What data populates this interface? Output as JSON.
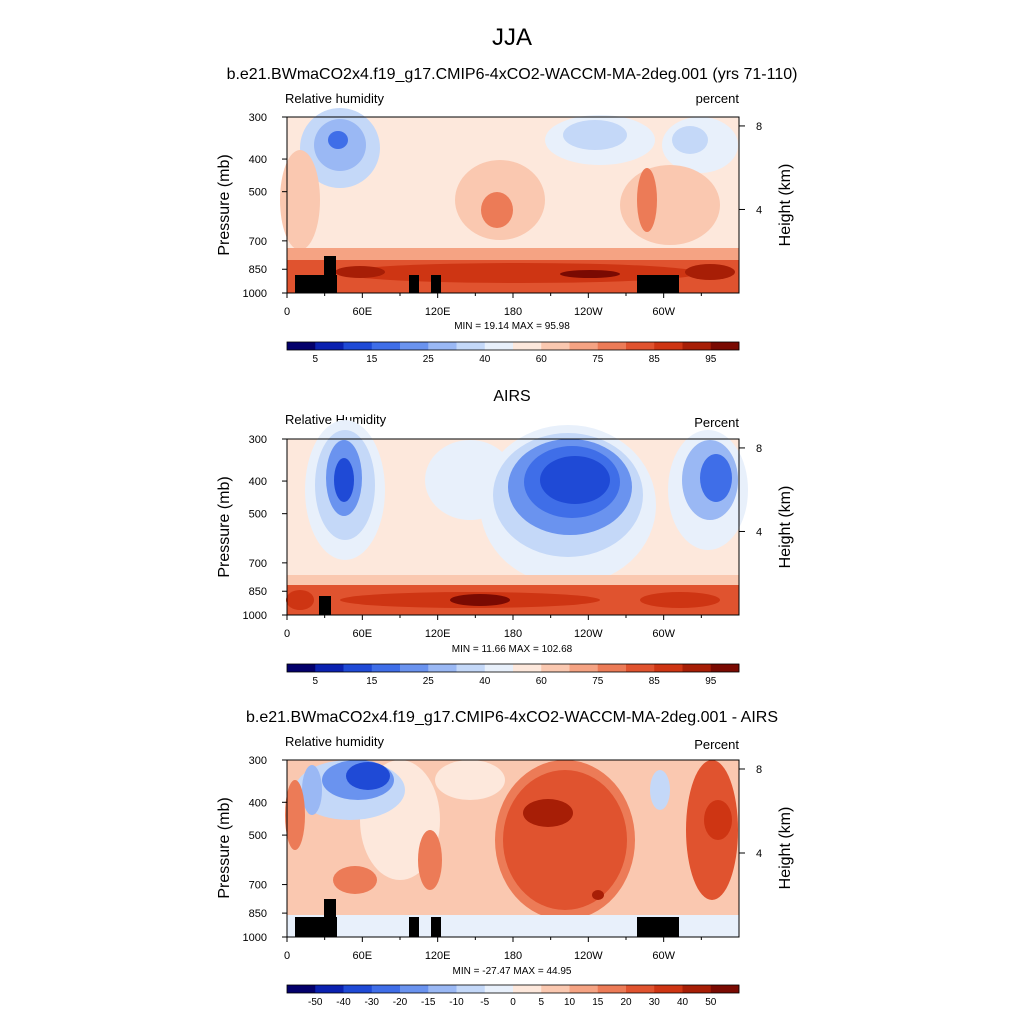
{
  "title": "JJA",
  "colors": {
    "rh_scale": [
      "#03006b",
      "#0a21b0",
      "#1f4ad6",
      "#3f6ee8",
      "#6a93ef",
      "#9ab8f4",
      "#c4d8f8",
      "#e8f0fb",
      "#fde8dc",
      "#fac8b0",
      "#f5a383",
      "#ec7b57",
      "#e0532f",
      "#ce3513",
      "#a71e06",
      "#7a0a02"
    ],
    "diff_scale": [
      "#03006b",
      "#0a21b0",
      "#1f4ad6",
      "#3f6ee8",
      "#6a93ef",
      "#9ab8f4",
      "#c4d8f8",
      "#e8f0fb",
      "#fde8dc",
      "#fac8b0",
      "#f5a383",
      "#ec7b57",
      "#e0532f",
      "#ce3513",
      "#a71e06",
      "#7a0a02"
    ],
    "land": "#000000"
  },
  "chart_data": [
    {
      "type": "heatmap",
      "title": "b.e21.BWmaCO2x4.f19_g17.CMIP6-4xCO2-WACCM-MA-2deg.001 (yrs 71-110)",
      "left_label": "Relative humidity",
      "right_label": "percent",
      "ylabel": "Pressure (mb)",
      "y2label": "Height (km)",
      "y_ticks": [
        "300",
        "400",
        "500",
        "700",
        "850",
        "1000"
      ],
      "y2_ticks": [
        "8",
        "4"
      ],
      "x_ticks": [
        "0",
        "60E",
        "120E",
        "180",
        "120W",
        "60W"
      ],
      "stats": "MIN =  19.14  MAX =  95.98",
      "colorbar_labels": [
        "5",
        "15",
        "25",
        "40",
        "60",
        "75",
        "85",
        "95"
      ],
      "min": 19.14,
      "max": 95.98
    },
    {
      "type": "heatmap",
      "title": "AIRS",
      "left_label": "Relative Humidity",
      "right_label": "Percent",
      "ylabel": "Pressure (mb)",
      "y2label": "Height (km)",
      "y_ticks": [
        "300",
        "400",
        "500",
        "700",
        "850",
        "1000"
      ],
      "y2_ticks": [
        "8",
        "4"
      ],
      "x_ticks": [
        "0",
        "60E",
        "120E",
        "180",
        "120W",
        "60W"
      ],
      "stats": "MIN =  11.66  MAX = 102.68",
      "colorbar_labels": [
        "5",
        "15",
        "25",
        "40",
        "60",
        "75",
        "85",
        "95"
      ],
      "min": 11.66,
      "max": 102.68
    },
    {
      "type": "heatmap",
      "title": "b.e21.BWmaCO2x4.f19_g17.CMIP6-4xCO2-WACCM-MA-2deg.001 - AIRS",
      "left_label": "Relative humidity",
      "right_label": "Percent",
      "ylabel": "Pressure (mb)",
      "y2label": "Height (km)",
      "y_ticks": [
        "300",
        "400",
        "500",
        "700",
        "850",
        "1000"
      ],
      "y2_ticks": [
        "8",
        "4"
      ],
      "x_ticks": [
        "0",
        "60E",
        "120E",
        "180",
        "120W",
        "60W"
      ],
      "stats": "MIN = -27.47  MAX =  44.95",
      "colorbar_labels": [
        "-50",
        "-40",
        "-30",
        "-20",
        "-15",
        "-10",
        "-5",
        "0",
        "5",
        "10",
        "15",
        "20",
        "30",
        "40",
        "50"
      ],
      "min": -27.47,
      "max": 44.95
    }
  ]
}
